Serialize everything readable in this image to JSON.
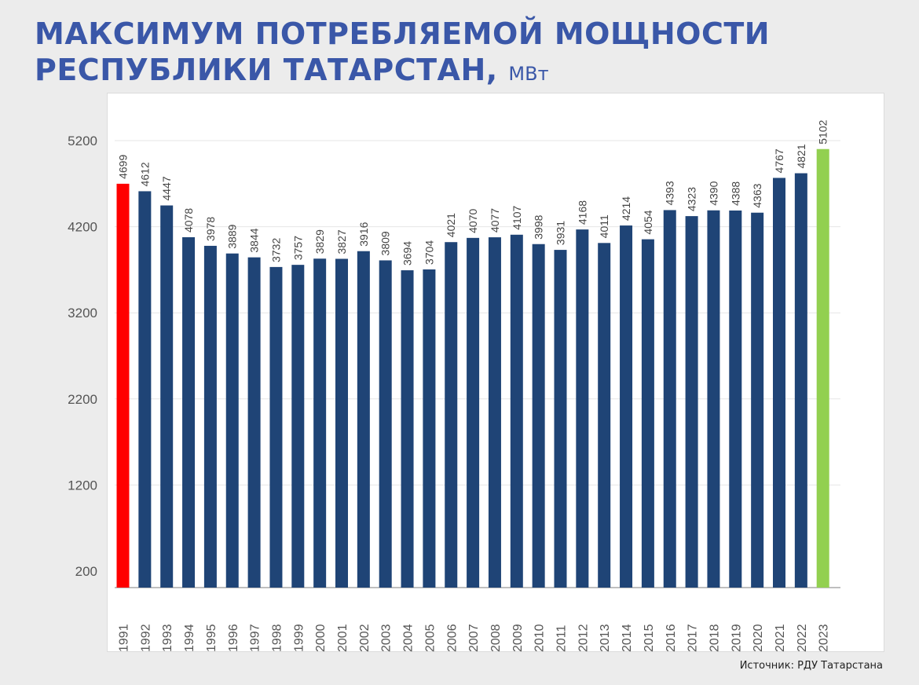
{
  "header": {
    "title_line1": "МАКСИМУМ ПОТРЕБЛЯЕМОЙ МОЩНОСТИ",
    "title_line2": "РЕСПУБЛИКИ ТАТАРСТАН,",
    "unit": "МВт"
  },
  "source": "Источник: РДУ Татарстана",
  "colors": {
    "title": "#3a57a8",
    "bar_default": "#1f4476",
    "bar_first": "#ff0000",
    "bar_last": "#92d050",
    "grid": "#e6e6e6",
    "axis": "#bfbfbf",
    "tick_text": "#555555",
    "label_text": "#444444"
  },
  "chart_data": {
    "type": "bar",
    "title": "МАКСИМУМ ПОТРЕБЛЯЕМОЙ МОЩНОСТИ РЕСПУБЛИКИ ТАТАРСТАН, МВт",
    "xlabel": "",
    "ylabel": "",
    "ylim": [
      0,
      5200
    ],
    "yticks": [
      200,
      1200,
      2200,
      3200,
      4200,
      5200
    ],
    "grid": true,
    "legend": "none",
    "categories": [
      "1991",
      "1992",
      "1993",
      "1994",
      "1995",
      "1996",
      "1997",
      "1998",
      "1999",
      "2000",
      "2001",
      "2002",
      "2003",
      "2004",
      "2005",
      "2006",
      "2007",
      "2008",
      "2009",
      "2010",
      "2011",
      "2012",
      "2013",
      "2014",
      "2015",
      "2016",
      "2017",
      "2018",
      "2019",
      "2020",
      "2021",
      "2022",
      "2023"
    ],
    "values": [
      4699,
      4612,
      4447,
      4078,
      3978,
      3889,
      3844,
      3732,
      3757,
      3829,
      3827,
      3916,
      3809,
      3694,
      3704,
      4021,
      4070,
      4077,
      4107,
      3998,
      3931,
      4168,
      4011,
      4214,
      4054,
      4393,
      4323,
      4390,
      4388,
      4363,
      4767,
      4821,
      5102
    ],
    "highlight": {
      "first": "red",
      "last": "green"
    }
  }
}
